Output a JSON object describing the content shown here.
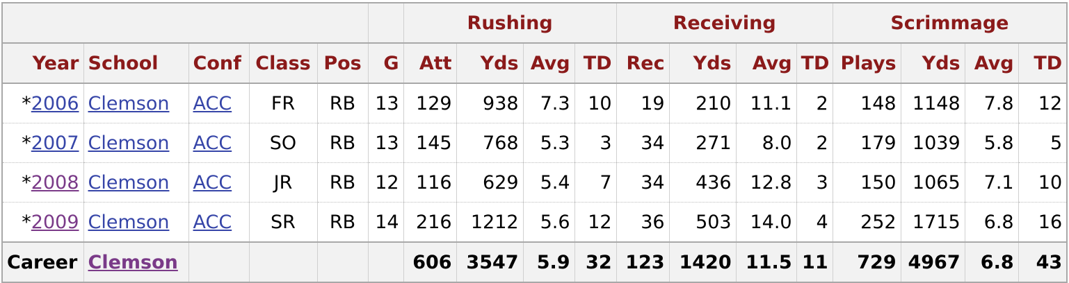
{
  "groups": {
    "rushing": "Rushing",
    "receiving": "Receiving",
    "scrimmage": "Scrimmage"
  },
  "columns": {
    "year": "Year",
    "school": "School",
    "conf": "Conf",
    "class": "Class",
    "pos": "Pos",
    "g": "G",
    "rush_att": "Att",
    "rush_yds": "Yds",
    "rush_avg": "Avg",
    "rush_td": "TD",
    "rec_rec": "Rec",
    "rec_yds": "Yds",
    "rec_avg": "Avg",
    "rec_td": "TD",
    "scr_plays": "Plays",
    "scr_yds": "Yds",
    "scr_avg": "Avg",
    "scr_td": "TD"
  },
  "rows": [
    {
      "marker": "*",
      "year": "2006",
      "school": "Clemson",
      "conf": "ACC",
      "class": "FR",
      "pos": "RB",
      "g": "13",
      "rush_att": "129",
      "rush_yds": "938",
      "rush_avg": "7.3",
      "rush_td": "10",
      "rec_rec": "19",
      "rec_yds": "210",
      "rec_avg": "11.1",
      "rec_td": "2",
      "scr_plays": "148",
      "scr_yds": "1148",
      "scr_avg": "7.8",
      "scr_td": "12"
    },
    {
      "marker": "*",
      "year": "2007",
      "school": "Clemson",
      "conf": "ACC",
      "class": "SO",
      "pos": "RB",
      "g": "13",
      "rush_att": "145",
      "rush_yds": "768",
      "rush_avg": "5.3",
      "rush_td": "3",
      "rec_rec": "34",
      "rec_yds": "271",
      "rec_avg": "8.0",
      "rec_td": "2",
      "scr_plays": "179",
      "scr_yds": "1039",
      "scr_avg": "5.8",
      "scr_td": "5"
    },
    {
      "marker": "*",
      "year": "2008",
      "school": "Clemson",
      "conf": "ACC",
      "class": "JR",
      "pos": "RB",
      "g": "12",
      "rush_att": "116",
      "rush_yds": "629",
      "rush_avg": "5.4",
      "rush_td": "7",
      "rec_rec": "34",
      "rec_yds": "436",
      "rec_avg": "12.8",
      "rec_td": "3",
      "scr_plays": "150",
      "scr_yds": "1065",
      "scr_avg": "7.1",
      "scr_td": "10"
    },
    {
      "marker": "*",
      "year": "2009",
      "school": "Clemson",
      "conf": "ACC",
      "class": "SR",
      "pos": "RB",
      "g": "14",
      "rush_att": "216",
      "rush_yds": "1212",
      "rush_avg": "5.6",
      "rush_td": "12",
      "rec_rec": "36",
      "rec_yds": "503",
      "rec_avg": "14.0",
      "rec_td": "4",
      "scr_plays": "252",
      "scr_yds": "1715",
      "scr_avg": "6.8",
      "scr_td": "16"
    }
  ],
  "career": {
    "label": "Career",
    "school": "Clemson",
    "rush_att": "606",
    "rush_yds": "3547",
    "rush_avg": "5.9",
    "rush_td": "32",
    "rec_rec": "123",
    "rec_yds": "1420",
    "rec_avg": "11.5",
    "rec_td": "11",
    "scr_plays": "729",
    "scr_yds": "4967",
    "scr_avg": "6.8",
    "scr_td": "43"
  },
  "colors": {
    "header_text": "#8b1a1a",
    "link": "#3645a8",
    "link_visited": "#7a3a88",
    "header_bg": "#f2f2f2"
  }
}
